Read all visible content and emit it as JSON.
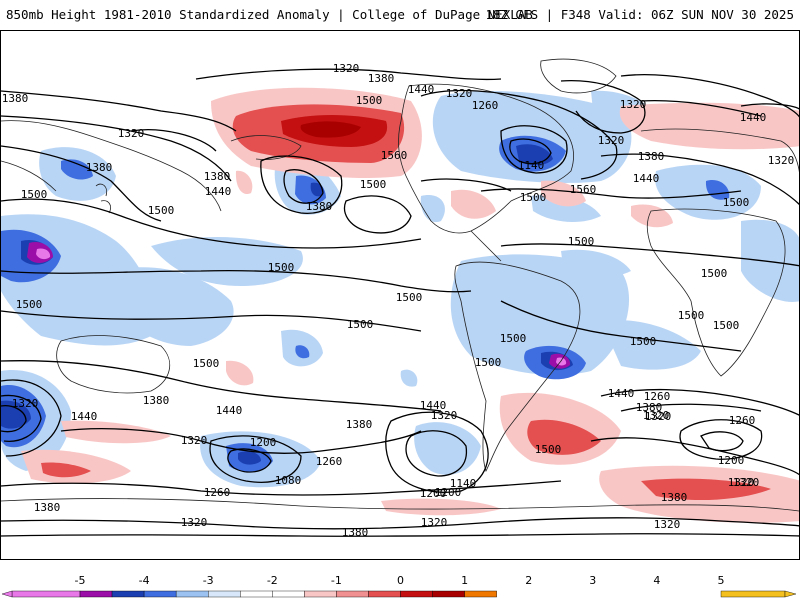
{
  "header": {
    "title_left": "850mb Height 1981-2010 Standardized Anomaly | College of DuPage NEXLAB",
    "title_right": "18Z GFS | F348 Valid: 06Z SUN NOV 30 2025"
  },
  "map": {
    "contour_labels": [
      "1320",
      "1380",
      "1380",
      "1320",
      "1500",
      "1440",
      "1320",
      "1260",
      "1320",
      "1440",
      "1320",
      "1320",
      "1560",
      "1380",
      "1500",
      "1140",
      "1380",
      "1440",
      "1500",
      "1380",
      "1500",
      "1380",
      "1500",
      "1560",
      "1440",
      "1500",
      "1500",
      "1500",
      "1500",
      "1500",
      "1500",
      "1500",
      "1500",
      "1500",
      "1500",
      "1500",
      "1500",
      "1500",
      "1440",
      "1440",
      "1380",
      "1320",
      "1380",
      "1320",
      "1440",
      "1320",
      "1440",
      "1380",
      "1320",
      "1380",
      "1260",
      "1200",
      "1320",
      "1200",
      "1260",
      "1080",
      "1140",
      "1200",
      "1260",
      "1500",
      "1380",
      "1260",
      "1320",
      "1380",
      "1320",
      "1320",
      "1320",
      "1200",
      "1320"
    ]
  },
  "colorbar": {
    "ticks": [
      "-5",
      "-4",
      "-3",
      "-2",
      "-1",
      "0",
      "1",
      "2",
      "3",
      "4",
      "5"
    ],
    "colors": [
      "#e877e8",
      "#9c0ea8",
      "#1b3fb0",
      "#3f6ee0",
      "#9cc2f2",
      "#d8e8fa",
      "#ffffff",
      "#ffffff",
      "#f9c6c6",
      "#f09090",
      "#e45050",
      "#c41010",
      "#a80000",
      "#f07800",
      "#f4c020"
    ]
  }
}
